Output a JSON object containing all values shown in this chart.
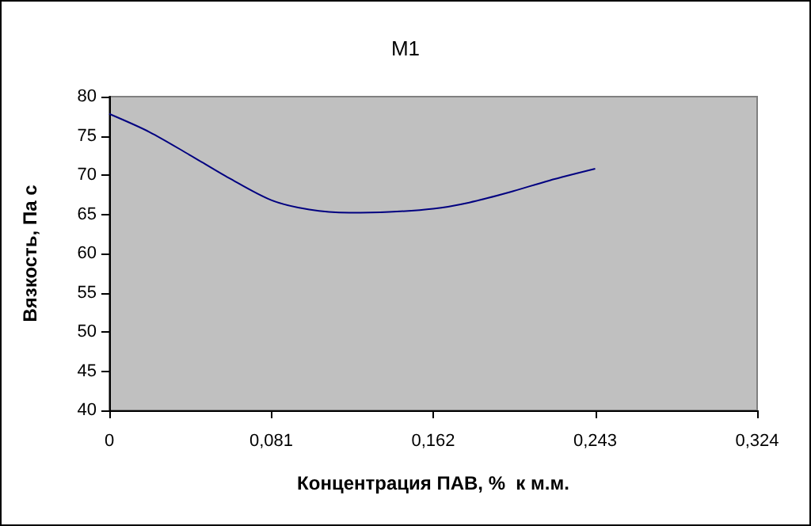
{
  "chart_data": {
    "type": "line",
    "title": "M1",
    "xlabel": "Концентрация ПАВ, %  к м.м.",
    "ylabel": "Вязкость, Па с",
    "x": [
      0,
      0.02,
      0.04,
      0.06,
      0.081,
      0.1,
      0.12,
      0.14,
      0.162,
      0.18,
      0.2,
      0.22,
      0.243
    ],
    "series": [
      {
        "color": "#000080",
        "values": [
          77.8,
          75.5,
          72.6,
          69.6,
          66.8,
          65.6,
          65.2,
          65.3,
          65.7,
          66.5,
          67.8,
          69.3,
          70.8
        ]
      }
    ],
    "xlim": [
      0,
      0.324
    ],
    "xticks": [
      0,
      {
        "value": 0.081,
        "label": "0,081"
      },
      {
        "value": 0.162,
        "label": "0,162"
      },
      {
        "value": 0.243,
        "label": "0,243"
      },
      {
        "value": 0.324,
        "label": "0,324"
      }
    ],
    "ylim": [
      40,
      80
    ],
    "yticks": [
      40,
      45,
      50,
      55,
      60,
      65,
      70,
      75,
      80
    ],
    "grid": false,
    "marker": "none",
    "line_style": "solid"
  }
}
